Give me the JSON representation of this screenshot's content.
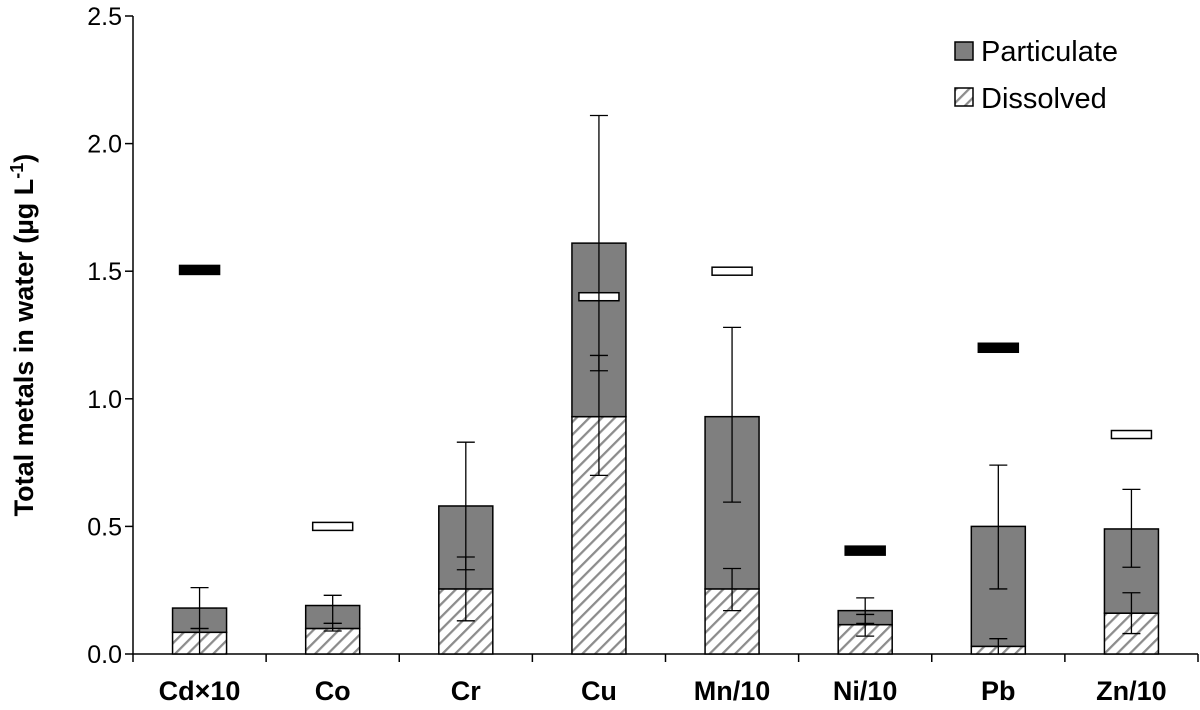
{
  "chart_data": {
    "type": "bar",
    "stacked": true,
    "ylabel": "Total metals in water (µg L",
    "ylabel_superscript": "-1",
    "ylabel_close": ")",
    "ylim": [
      0,
      2.5
    ],
    "yticks": [
      "0.0",
      "0.5",
      "1.0",
      "1.5",
      "2.0",
      "2.5"
    ],
    "categories": [
      "Cd×10",
      "Co",
      "Cr",
      "Cu",
      "Mn/10",
      "Ni/10",
      "Pb",
      "Zn/10"
    ],
    "legend_position": "top-right",
    "series": [
      {
        "name": "Dissolved",
        "pattern": "hatched",
        "values": [
          0.085,
          0.1,
          0.255,
          0.93,
          0.255,
          0.115,
          0.03,
          0.16
        ],
        "error_low": [
          0.0,
          0.09,
          0.13,
          0.7,
          0.17,
          0.07,
          0.0,
          0.08
        ],
        "error_high": [
          0.1,
          0.12,
          0.38,
          1.17,
          0.335,
          0.155,
          0.06,
          0.24
        ]
      },
      {
        "name": "Particulate",
        "fill": "#7f7f7f",
        "totals": [
          0.18,
          0.19,
          0.58,
          1.61,
          0.93,
          0.17,
          0.5,
          0.49
        ],
        "error_low": [
          0.1,
          0.12,
          0.33,
          1.11,
          0.595,
          0.12,
          0.255,
          0.34
        ],
        "error_high": [
          0.26,
          0.23,
          0.83,
          2.11,
          1.28,
          0.22,
          0.74,
          0.645
        ]
      }
    ],
    "guideline_markers": {
      "values": [
        1.505,
        0.5,
        null,
        1.4,
        1.5,
        0.405,
        1.2,
        0.86
      ],
      "styles": [
        "filled",
        "open",
        null,
        "open",
        "open",
        "filled",
        "filled",
        "open"
      ]
    },
    "colors": {
      "particulate": "#7f7f7f",
      "hatch": "#8c8c8c",
      "marker_filled": "#000000",
      "marker_open": "#ffffff"
    }
  }
}
